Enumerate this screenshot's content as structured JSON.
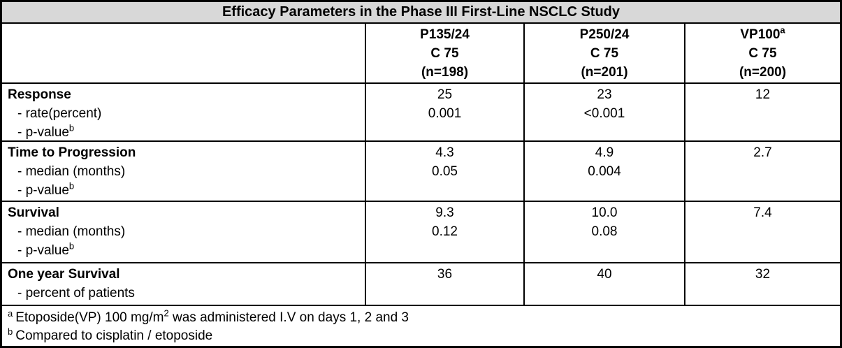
{
  "table": {
    "title": "Efficacy Parameters in the Phase III First-Line NSCLC Study",
    "columns": [
      {
        "line1": "P135/24",
        "sup": "",
        "line2": "C 75",
        "line3": "(n=198)"
      },
      {
        "line1": "P250/24",
        "sup": "",
        "line2": "C 75",
        "line3": "(n=201)"
      },
      {
        "line1": "VP100",
        "sup": "a",
        "line2": "C 75",
        "line3": "(n=200)"
      }
    ],
    "sections": [
      {
        "heading": "Response",
        "rows": [
          {
            "label": "- rate(percent)",
            "sup": "",
            "values": [
              "25",
              "23",
              "12"
            ]
          },
          {
            "label": "- p-value",
            "sup": "b",
            "values": [
              "0.001",
              "<0.001",
              ""
            ]
          }
        ]
      },
      {
        "heading": "Time to Progression",
        "rows": [
          {
            "label": "- median (months)",
            "sup": "",
            "values": [
              "4.3",
              "4.9",
              "2.7"
            ]
          },
          {
            "label": "- p-value",
            "sup": "b",
            "values": [
              "0.05",
              "0.004",
              ""
            ]
          }
        ]
      },
      {
        "heading": "Survival",
        "rows": [
          {
            "label": "- median (months)",
            "sup": "",
            "values": [
              "9.3",
              "10.0",
              "7.4"
            ]
          },
          {
            "label": "- p-value",
            "sup": "b",
            "values": [
              "0.12",
              "0.08",
              ""
            ]
          }
        ]
      },
      {
        "heading": "One year Survival",
        "rows": [
          {
            "label": "- percent of patients",
            "sup": "",
            "values": [
              "36",
              "40",
              "32"
            ]
          }
        ]
      }
    ],
    "footnotes": [
      {
        "marker": "a",
        "part1": "Etoposide(VP) 100 mg/m",
        "sup": "2",
        "part2": " was administered I.V on days 1, 2 and 3"
      },
      {
        "marker": "b",
        "part1": "Compared to cisplatin / etoposide",
        "sup": "",
        "part2": ""
      }
    ]
  }
}
